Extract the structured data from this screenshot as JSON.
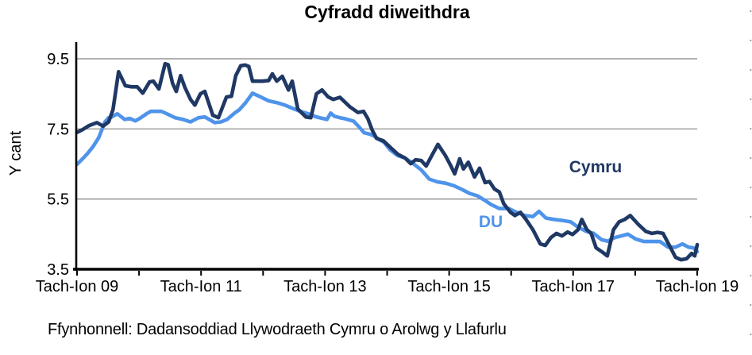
{
  "page": {
    "source": "Ffynhonnell: Dadansoddiad Llywodraeth Cymru o Arolwg y Llafurlu"
  },
  "chart_data": {
    "type": "line",
    "title": "Cyfradd diweithdra",
    "xlabel": "",
    "ylabel": "Y cant",
    "ylim": [
      3.5,
      9.95
    ],
    "ytick_labels": [
      "9.5",
      "7.5",
      "5.5",
      "3.5"
    ],
    "ytick_values": [
      9.5,
      7.5,
      5.5,
      3.5
    ],
    "x_range_years": [
      0,
      10
    ],
    "xtick_labels": [
      "Tach-Ion 09",
      "Tach-Ion 11",
      "Tach-Ion 13",
      "Tach-Ion 15",
      "Tach-Ion 17",
      "Tach-Ion 19"
    ],
    "xtick_year_positions": [
      0,
      2,
      4,
      6,
      8,
      10
    ],
    "grid": "horizontal",
    "legend": "inline-labels",
    "colors": {
      "cymru": "#1f3864",
      "du": "#4f94ea",
      "gridline": "#808080",
      "axis": "#000000"
    },
    "series": [
      {
        "name": "Cymru",
        "color": "#1f3864",
        "points": [
          [
            0,
            7.4
          ],
          [
            0.09,
            7.48
          ],
          [
            0.19,
            7.59
          ],
          [
            0.32,
            7.68
          ],
          [
            0.42,
            7.58
          ],
          [
            0.51,
            7.7
          ],
          [
            0.58,
            8.05
          ],
          [
            0.67,
            9.13
          ],
          [
            0.78,
            8.73
          ],
          [
            0.88,
            8.7
          ],
          [
            0.97,
            8.7
          ],
          [
            1.06,
            8.52
          ],
          [
            1.17,
            8.84
          ],
          [
            1.23,
            8.86
          ],
          [
            1.32,
            8.64
          ],
          [
            1.42,
            9.36
          ],
          [
            1.47,
            9.33
          ],
          [
            1.54,
            8.8
          ],
          [
            1.6,
            8.57
          ],
          [
            1.67,
            9.02
          ],
          [
            1.74,
            8.68
          ],
          [
            1.83,
            8.34
          ],
          [
            1.9,
            8.18
          ],
          [
            1.99,
            8.5
          ],
          [
            2.06,
            8.57
          ],
          [
            2.19,
            7.89
          ],
          [
            2.28,
            7.82
          ],
          [
            2.41,
            8.41
          ],
          [
            2.49,
            8.43
          ],
          [
            2.56,
            9.02
          ],
          [
            2.64,
            9.3
          ],
          [
            2.71,
            9.32
          ],
          [
            2.77,
            9.28
          ],
          [
            2.83,
            8.86
          ],
          [
            2.99,
            8.86
          ],
          [
            3.09,
            8.88
          ],
          [
            3.15,
            9.07
          ],
          [
            3.22,
            8.86
          ],
          [
            3.31,
            9.0
          ],
          [
            3.41,
            8.61
          ],
          [
            3.47,
            8.86
          ],
          [
            3.56,
            8.07
          ],
          [
            3.69,
            7.84
          ],
          [
            3.77,
            7.82
          ],
          [
            3.86,
            8.5
          ],
          [
            3.95,
            8.61
          ],
          [
            4.05,
            8.41
          ],
          [
            4.13,
            8.34
          ],
          [
            4.24,
            8.4
          ],
          [
            4.4,
            8.13
          ],
          [
            4.53,
            7.97
          ],
          [
            4.62,
            8.0
          ],
          [
            4.69,
            7.79
          ],
          [
            4.76,
            7.46
          ],
          [
            4.83,
            7.23
          ],
          [
            4.94,
            7.16
          ],
          [
            5.06,
            6.96
          ],
          [
            5.17,
            6.78
          ],
          [
            5.29,
            6.67
          ],
          [
            5.38,
            6.51
          ],
          [
            5.46,
            6.62
          ],
          [
            5.55,
            6.6
          ],
          [
            5.63,
            6.44
          ],
          [
            5.72,
            6.74
          ],
          [
            5.82,
            7.06
          ],
          [
            5.94,
            6.74
          ],
          [
            6.03,
            6.44
          ],
          [
            6.09,
            6.22
          ],
          [
            6.17,
            6.65
          ],
          [
            6.23,
            6.36
          ],
          [
            6.31,
            6.55
          ],
          [
            6.41,
            6.13
          ],
          [
            6.49,
            6.38
          ],
          [
            6.58,
            5.97
          ],
          [
            6.65,
            6.0
          ],
          [
            6.73,
            5.79
          ],
          [
            6.81,
            5.7
          ],
          [
            6.88,
            5.37
          ],
          [
            6.99,
            5.12
          ],
          [
            7.06,
            5.03
          ],
          [
            7.15,
            5.12
          ],
          [
            7.24,
            4.92
          ],
          [
            7.35,
            4.63
          ],
          [
            7.47,
            4.22
          ],
          [
            7.55,
            4.18
          ],
          [
            7.64,
            4.4
          ],
          [
            7.73,
            4.52
          ],
          [
            7.82,
            4.45
          ],
          [
            7.91,
            4.56
          ],
          [
            7.99,
            4.49
          ],
          [
            8.08,
            4.63
          ],
          [
            8.14,
            4.92
          ],
          [
            8.22,
            4.63
          ],
          [
            8.29,
            4.52
          ],
          [
            8.37,
            4.11
          ],
          [
            8.47,
            3.99
          ],
          [
            8.55,
            3.88
          ],
          [
            8.65,
            4.63
          ],
          [
            8.74,
            4.85
          ],
          [
            8.83,
            4.92
          ],
          [
            8.92,
            5.03
          ],
          [
            9.05,
            4.78
          ],
          [
            9.17,
            4.58
          ],
          [
            9.27,
            4.52
          ],
          [
            9.36,
            4.55
          ],
          [
            9.45,
            4.52
          ],
          [
            9.55,
            4.18
          ],
          [
            9.65,
            3.84
          ],
          [
            9.74,
            3.77
          ],
          [
            9.83,
            3.8
          ],
          [
            9.91,
            3.95
          ],
          [
            9.96,
            3.88
          ],
          [
            10,
            4.2
          ]
        ]
      },
      {
        "name": "DU",
        "color": "#4f94ea",
        "points": [
          [
            0,
            6.49
          ],
          [
            0.09,
            6.65
          ],
          [
            0.17,
            6.8
          ],
          [
            0.26,
            7.0
          ],
          [
            0.35,
            7.25
          ],
          [
            0.45,
            7.7
          ],
          [
            0.51,
            7.82
          ],
          [
            0.56,
            7.84
          ],
          [
            0.65,
            7.93
          ],
          [
            0.77,
            7.77
          ],
          [
            0.85,
            7.8
          ],
          [
            0.94,
            7.73
          ],
          [
            1.03,
            7.82
          ],
          [
            1.12,
            7.93
          ],
          [
            1.19,
            8.0
          ],
          [
            1.36,
            8.0
          ],
          [
            1.45,
            7.93
          ],
          [
            1.58,
            7.82
          ],
          [
            1.71,
            7.77
          ],
          [
            1.83,
            7.7
          ],
          [
            1.96,
            7.82
          ],
          [
            2.06,
            7.84
          ],
          [
            2.22,
            7.68
          ],
          [
            2.32,
            7.7
          ],
          [
            2.42,
            7.77
          ],
          [
            2.54,
            7.95
          ],
          [
            2.62,
            8.05
          ],
          [
            2.72,
            8.25
          ],
          [
            2.83,
            8.52
          ],
          [
            2.96,
            8.41
          ],
          [
            3.09,
            8.3
          ],
          [
            3.22,
            8.25
          ],
          [
            3.35,
            8.18
          ],
          [
            3.47,
            8.09
          ],
          [
            3.6,
            8.0
          ],
          [
            3.73,
            7.93
          ],
          [
            3.86,
            7.84
          ],
          [
            3.96,
            7.8
          ],
          [
            4.03,
            7.77
          ],
          [
            4.09,
            7.95
          ],
          [
            4.15,
            7.86
          ],
          [
            4.24,
            7.82
          ],
          [
            4.32,
            7.79
          ],
          [
            4.46,
            7.72
          ],
          [
            4.55,
            7.55
          ],
          [
            4.63,
            7.39
          ],
          [
            4.72,
            7.35
          ],
          [
            4.79,
            7.3
          ],
          [
            4.87,
            7.2
          ],
          [
            4.95,
            7.12
          ],
          [
            5.05,
            6.9
          ],
          [
            5.17,
            6.74
          ],
          [
            5.29,
            6.67
          ],
          [
            5.42,
            6.51
          ],
          [
            5.55,
            6.33
          ],
          [
            5.68,
            6.07
          ],
          [
            5.81,
            5.99
          ],
          [
            5.95,
            5.95
          ],
          [
            6.08,
            5.88
          ],
          [
            6.21,
            5.77
          ],
          [
            6.33,
            5.66
          ],
          [
            6.46,
            5.59
          ],
          [
            6.56,
            5.48
          ],
          [
            6.68,
            5.34
          ],
          [
            6.81,
            5.23
          ],
          [
            6.96,
            5.23
          ],
          [
            7.09,
            5.12
          ],
          [
            7.22,
            5.03
          ],
          [
            7.35,
            5.0
          ],
          [
            7.45,
            5.15
          ],
          [
            7.56,
            4.96
          ],
          [
            7.69,
            4.92
          ],
          [
            7.83,
            4.89
          ],
          [
            7.96,
            4.85
          ],
          [
            8.08,
            4.7
          ],
          [
            8.21,
            4.58
          ],
          [
            8.33,
            4.52
          ],
          [
            8.46,
            4.34
          ],
          [
            8.56,
            4.3
          ],
          [
            8.67,
            4.4
          ],
          [
            8.78,
            4.45
          ],
          [
            8.88,
            4.5
          ],
          [
            9.01,
            4.36
          ],
          [
            9.14,
            4.29
          ],
          [
            9.4,
            4.29
          ],
          [
            9.53,
            4.13
          ],
          [
            9.65,
            4.13
          ],
          [
            9.76,
            4.22
          ],
          [
            9.86,
            4.13
          ],
          [
            9.94,
            4.11
          ],
          [
            10,
            4.0
          ]
        ]
      }
    ]
  }
}
